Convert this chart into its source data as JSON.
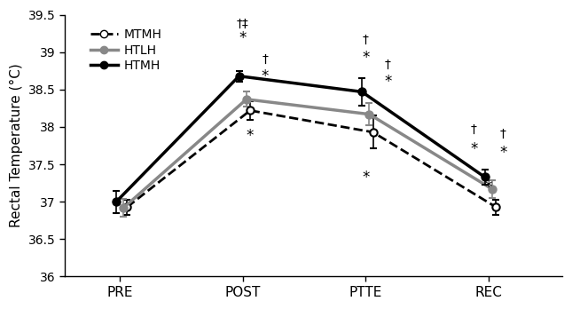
{
  "x_labels": [
    "PRE",
    "POST",
    "PTTE",
    "REC"
  ],
  "x_positions": [
    0,
    1,
    2,
    3
  ],
  "series": {
    "MTMH": {
      "y": [
        36.93,
        38.22,
        37.93,
        36.93
      ],
      "yerr": [
        0.1,
        0.12,
        0.22,
        0.1
      ],
      "color": "black",
      "linestyle": "--",
      "marker": "o",
      "markerfacecolor": "white",
      "linewidth": 2.0,
      "markersize": 6
    },
    "HTLH": {
      "y": [
        36.92,
        38.37,
        38.17,
        37.17
      ],
      "yerr": [
        0.12,
        0.1,
        0.15,
        0.12
      ],
      "color": "#888888",
      "linestyle": "-",
      "marker": "o",
      "markerfacecolor": "#888888",
      "linewidth": 2.5,
      "markersize": 6
    },
    "HTMH": {
      "y": [
        37.0,
        38.68,
        38.47,
        37.33
      ],
      "yerr": [
        0.15,
        0.07,
        0.18,
        0.1
      ],
      "color": "black",
      "linestyle": "-",
      "marker": "o",
      "markerfacecolor": "black",
      "linewidth": 2.5,
      "markersize": 6
    }
  },
  "ylim": [
    36.0,
    39.5
  ],
  "yticks": [
    36.0,
    36.5,
    37.0,
    37.5,
    38.0,
    38.5,
    39.0,
    39.5
  ],
  "ylabel": "Rectal Temperature (°C)",
  "background_color": "white",
  "figsize": [
    6.45,
    3.48
  ],
  "dpi": 100
}
